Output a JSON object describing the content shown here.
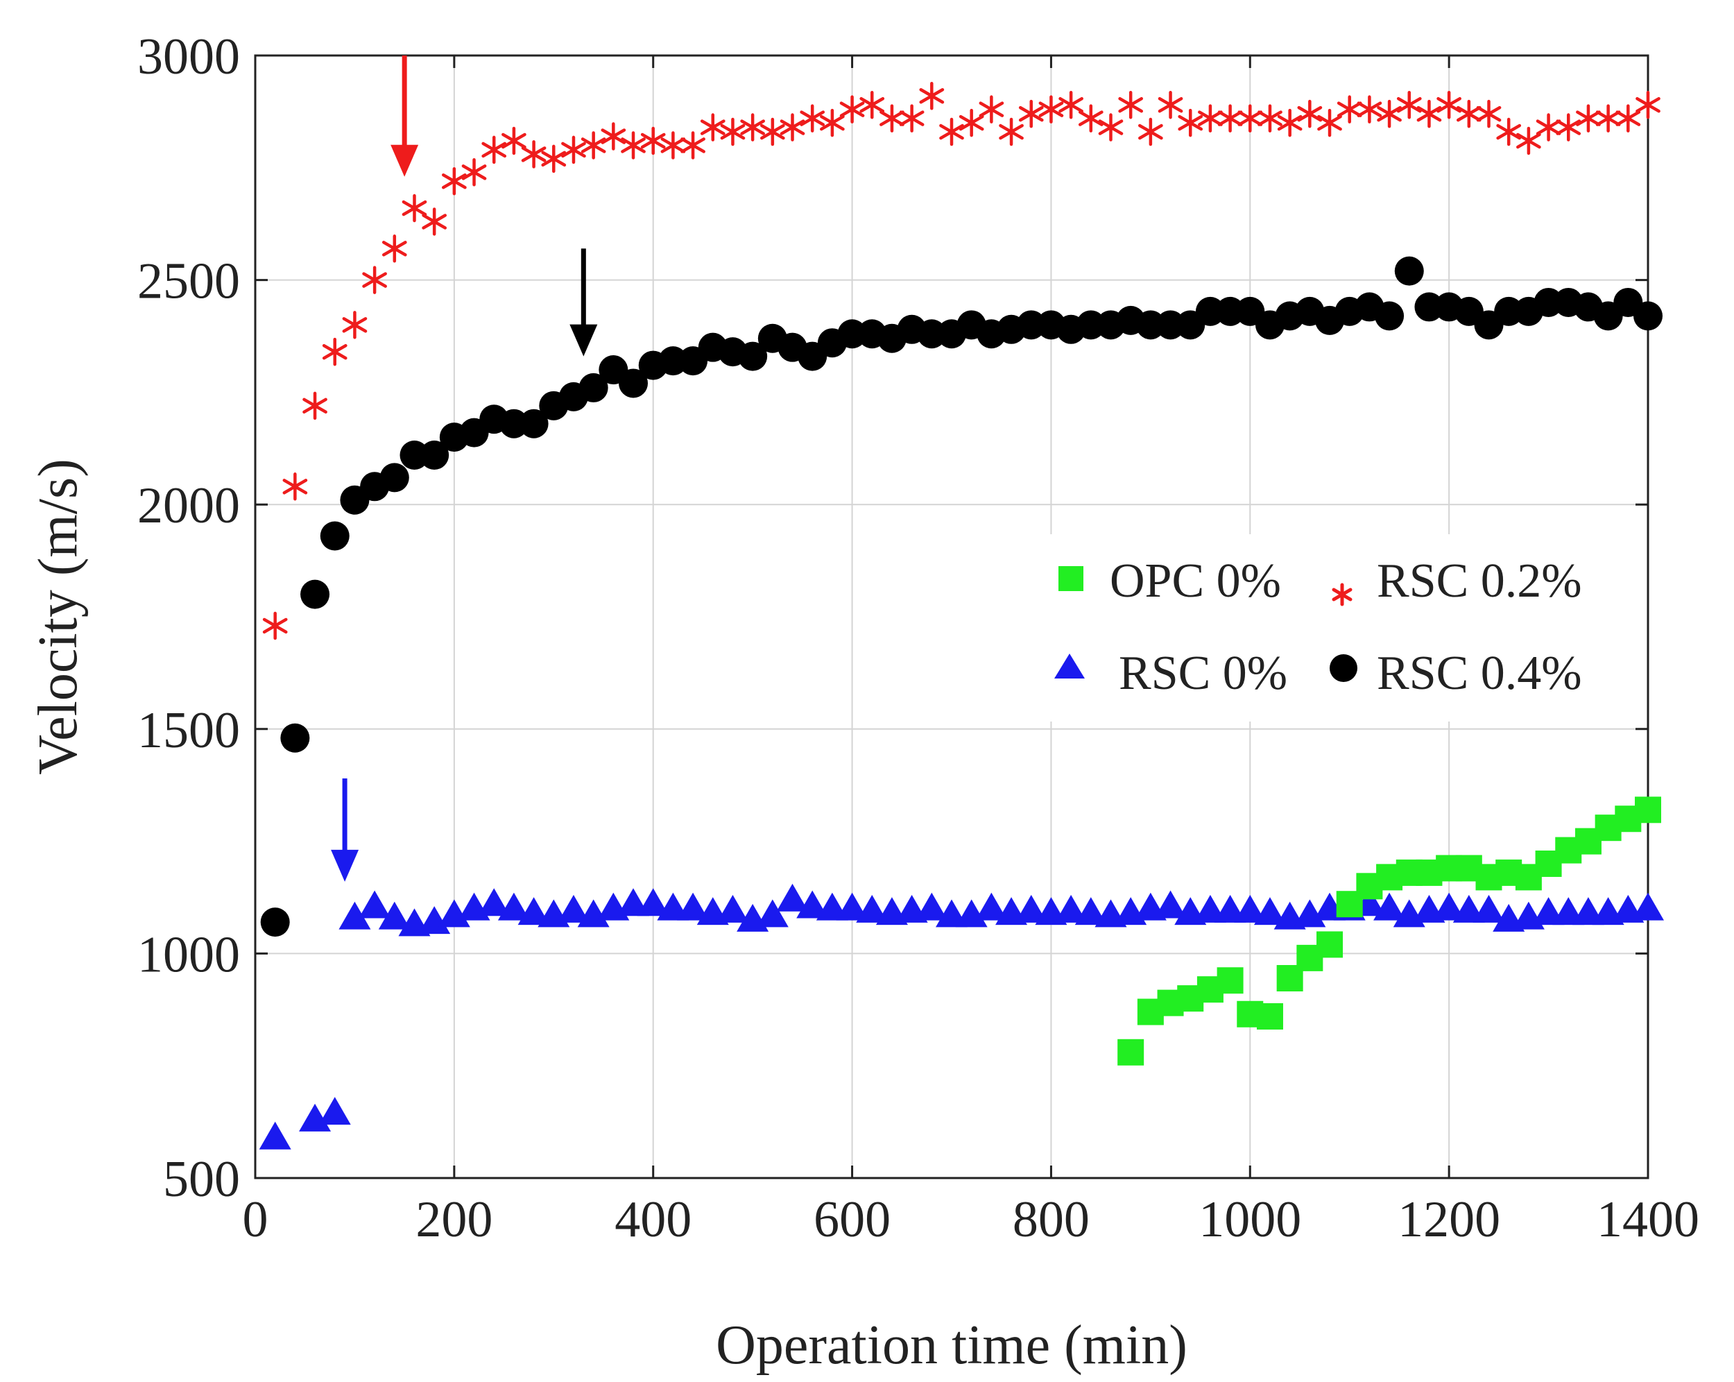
{
  "chart_data": {
    "type": "scatter",
    "title": "",
    "xlabel": "Operation time (min)",
    "ylabel": "Velocity (m/s)",
    "xlim": [
      0,
      1400
    ],
    "ylim": [
      500,
      3000
    ],
    "xticks": [
      0,
      200,
      400,
      600,
      800,
      1000,
      1200,
      1400
    ],
    "yticks": [
      500,
      1000,
      1500,
      2000,
      2500,
      3000
    ],
    "xtick_labels": [
      "0",
      "200",
      "400",
      "600",
      "800",
      "1000",
      "1200",
      "1400"
    ],
    "ytick_labels": [
      "500",
      "1000",
      "1500",
      "2000",
      "2500",
      "3000"
    ],
    "grid": true,
    "legend_position": "right, middle",
    "series": [
      {
        "name": "OPC 0%",
        "marker": "square",
        "color": "#22ee22",
        "x": [
          880,
          900,
          920,
          940,
          960,
          980,
          1000,
          1020,
          1040,
          1060,
          1080,
          1100,
          1120,
          1140,
          1160,
          1180,
          1200,
          1220,
          1240,
          1260,
          1280,
          1300,
          1320,
          1340,
          1360,
          1380,
          1400
        ],
        "y": [
          780,
          870,
          890,
          900,
          920,
          940,
          865,
          860,
          945,
          990,
          1020,
          1110,
          1150,
          1170,
          1180,
          1180,
          1190,
          1190,
          1170,
          1180,
          1170,
          1200,
          1230,
          1250,
          1280,
          1300,
          1320
        ]
      },
      {
        "name": "RSC 0.2%",
        "marker": "asterisk",
        "color": "#ee1c1c",
        "x": [
          20,
          40,
          60,
          80,
          100,
          120,
          140,
          160,
          180,
          200,
          220,
          240,
          260,
          280,
          300,
          320,
          340,
          360,
          380,
          400,
          420,
          440,
          460,
          480,
          500,
          520,
          540,
          560,
          580,
          600,
          620,
          640,
          660,
          680,
          700,
          720,
          740,
          760,
          780,
          800,
          820,
          840,
          860,
          880,
          900,
          920,
          940,
          960,
          980,
          1000,
          1020,
          1040,
          1060,
          1080,
          1100,
          1120,
          1140,
          1160,
          1180,
          1200,
          1220,
          1240,
          1260,
          1280,
          1300,
          1320,
          1340,
          1360,
          1380,
          1400
        ],
        "y": [
          1730,
          2040,
          2220,
          2340,
          2400,
          2500,
          2570,
          2660,
          2630,
          2720,
          2740,
          2790,
          2810,
          2780,
          2770,
          2790,
          2800,
          2820,
          2800,
          2810,
          2800,
          2800,
          2840,
          2830,
          2840,
          2830,
          2840,
          2860,
          2850,
          2880,
          2890,
          2860,
          2860,
          2910,
          2830,
          2850,
          2880,
          2830,
          2870,
          2880,
          2890,
          2860,
          2840,
          2890,
          2830,
          2890,
          2850,
          2860,
          2860,
          2860,
          2860,
          2850,
          2870,
          2850,
          2880,
          2880,
          2870,
          2890,
          2870,
          2890,
          2870,
          2870,
          2830,
          2810,
          2840,
          2840,
          2860,
          2860,
          2860,
          2890
        ]
      },
      {
        "name": "RSC 0%",
        "marker": "triangle",
        "color": "#1a1aee",
        "x": [
          20,
          60,
          80,
          100,
          120,
          140,
          160,
          180,
          200,
          220,
          240,
          260,
          280,
          300,
          320,
          340,
          360,
          380,
          400,
          420,
          440,
          460,
          480,
          500,
          520,
          540,
          560,
          580,
          600,
          620,
          640,
          660,
          680,
          700,
          720,
          740,
          760,
          780,
          800,
          820,
          840,
          860,
          880,
          900,
          920,
          940,
          960,
          980,
          1000,
          1020,
          1040,
          1060,
          1080,
          1100,
          1120,
          1140,
          1160,
          1180,
          1200,
          1220,
          1240,
          1260,
          1280,
          1300,
          1320,
          1340,
          1360,
          1380,
          1400
        ],
        "y": [
          590,
          630,
          645,
          1080,
          1105,
          1080,
          1065,
          1070,
          1085,
          1100,
          1110,
          1100,
          1090,
          1085,
          1095,
          1085,
          1100,
          1110,
          1110,
          1100,
          1100,
          1090,
          1095,
          1075,
          1085,
          1120,
          1105,
          1100,
          1100,
          1095,
          1090,
          1095,
          1100,
          1085,
          1085,
          1100,
          1090,
          1095,
          1090,
          1095,
          1090,
          1085,
          1090,
          1100,
          1105,
          1090,
          1095,
          1095,
          1095,
          1090,
          1080,
          1085,
          1100,
          1100,
          1110,
          1100,
          1085,
          1095,
          1100,
          1095,
          1095,
          1075,
          1080,
          1090,
          1090,
          1090,
          1090,
          1095,
          1100
        ]
      },
      {
        "name": "RSC 0.4%",
        "marker": "circle",
        "color": "#000000",
        "x": [
          20,
          40,
          60,
          80,
          100,
          120,
          140,
          160,
          180,
          200,
          220,
          240,
          260,
          280,
          300,
          320,
          340,
          360,
          380,
          400,
          420,
          440,
          460,
          480,
          500,
          520,
          540,
          560,
          580,
          600,
          620,
          640,
          660,
          680,
          700,
          720,
          740,
          760,
          780,
          800,
          820,
          840,
          860,
          880,
          900,
          920,
          940,
          960,
          980,
          1000,
          1020,
          1040,
          1060,
          1080,
          1100,
          1120,
          1140,
          1160,
          1180,
          1200,
          1220,
          1240,
          1260,
          1280,
          1300,
          1320,
          1340,
          1360,
          1380,
          1400
        ],
        "y": [
          1070,
          1480,
          1800,
          1930,
          2010,
          2040,
          2060,
          2110,
          2110,
          2150,
          2160,
          2190,
          2180,
          2180,
          2220,
          2240,
          2260,
          2300,
          2270,
          2310,
          2320,
          2320,
          2350,
          2340,
          2330,
          2370,
          2350,
          2330,
          2360,
          2380,
          2380,
          2370,
          2390,
          2380,
          2380,
          2400,
          2380,
          2390,
          2400,
          2400,
          2390,
          2400,
          2400,
          2410,
          2400,
          2400,
          2400,
          2430,
          2430,
          2430,
          2400,
          2420,
          2430,
          2410,
          2430,
          2440,
          2420,
          2520,
          2440,
          2440,
          2430,
          2400,
          2430,
          2430,
          2450,
          2450,
          2440,
          2420,
          2450,
          2420
        ]
      }
    ],
    "annotations": [
      {
        "type": "arrow",
        "color": "#ee1c1c",
        "x": 150,
        "y_from": 3000,
        "y_to": 2730
      },
      {
        "type": "arrow",
        "color": "#000000",
        "x": 330,
        "y_from": 2570,
        "y_to": 2330
      },
      {
        "type": "arrow",
        "color": "#1a1aee",
        "x": 90,
        "y_from": 1390,
        "y_to": 1160
      }
    ]
  }
}
